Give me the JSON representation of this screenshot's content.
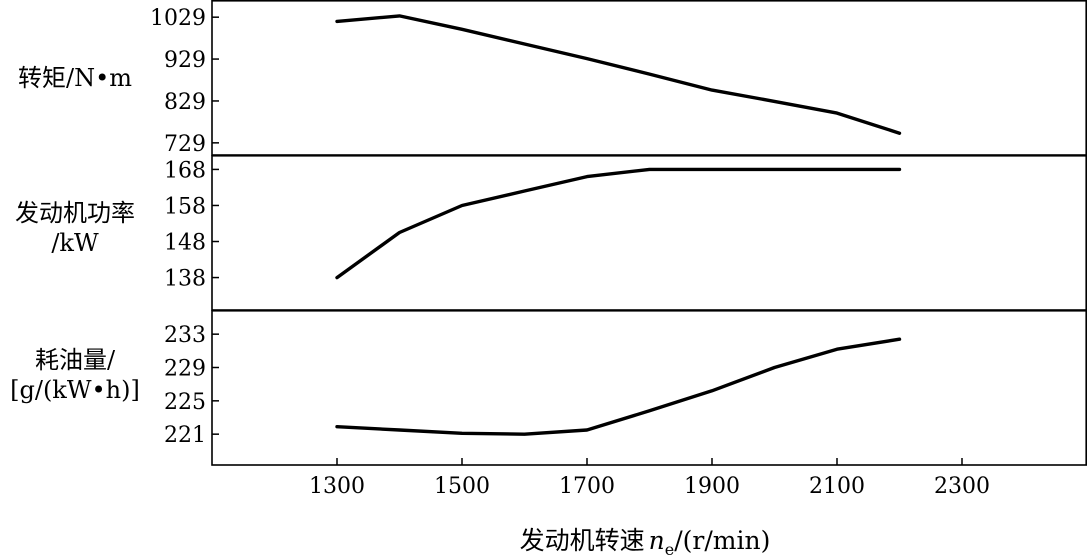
{
  "chart_data": [
    {
      "type": "line",
      "ylabel_lines": [
        "转矩/N•m"
      ],
      "y_ticks": [
        1029,
        929,
        829,
        729
      ],
      "ylim": [
        700,
        1070
      ],
      "x": [
        1300,
        1400,
        1500,
        1600,
        1700,
        1800,
        1900,
        2000,
        2100,
        2200
      ],
      "series": [
        {
          "values": [
            1019,
            1032,
            1000,
            965,
            930,
            893,
            855,
            828,
            800,
            752
          ]
        }
      ]
    },
    {
      "type": "line",
      "ylabel_lines": [
        "发动机功率",
        "/kW"
      ],
      "y_ticks": [
        168,
        158,
        148,
        138
      ],
      "ylim": [
        129,
        172
      ],
      "x": [
        1300,
        1400,
        1500,
        1600,
        1700,
        1800,
        1900,
        2000,
        2100,
        2200
      ],
      "series": [
        {
          "values": [
            138,
            150.5,
            158,
            162,
            166,
            168,
            168,
            168,
            168,
            168
          ]
        }
      ]
    },
    {
      "type": "line",
      "ylabel_lines": [
        "耗油量/",
        "[g/(kW•h)]"
      ],
      "y_ticks": [
        233,
        229,
        225,
        221
      ],
      "ylim": [
        217.3,
        235.9
      ],
      "x": [
        1300,
        1400,
        1500,
        1600,
        1700,
        1800,
        1900,
        2000,
        2100,
        2200
      ],
      "series": [
        {
          "values": [
            221.9,
            221.5,
            221.1,
            221.0,
            221.5,
            223.8,
            226.2,
            229.0,
            231.2,
            232.4
          ]
        }
      ]
    }
  ],
  "x_axis": {
    "ticks": [
      1300,
      1500,
      1700,
      1900,
      2100,
      2300
    ],
    "xlim": [
      1100,
      2500
    ],
    "label_main": "发动机转速",
    "label_var": "n",
    "label_sub": "e",
    "label_unit": "/(r/min)"
  }
}
